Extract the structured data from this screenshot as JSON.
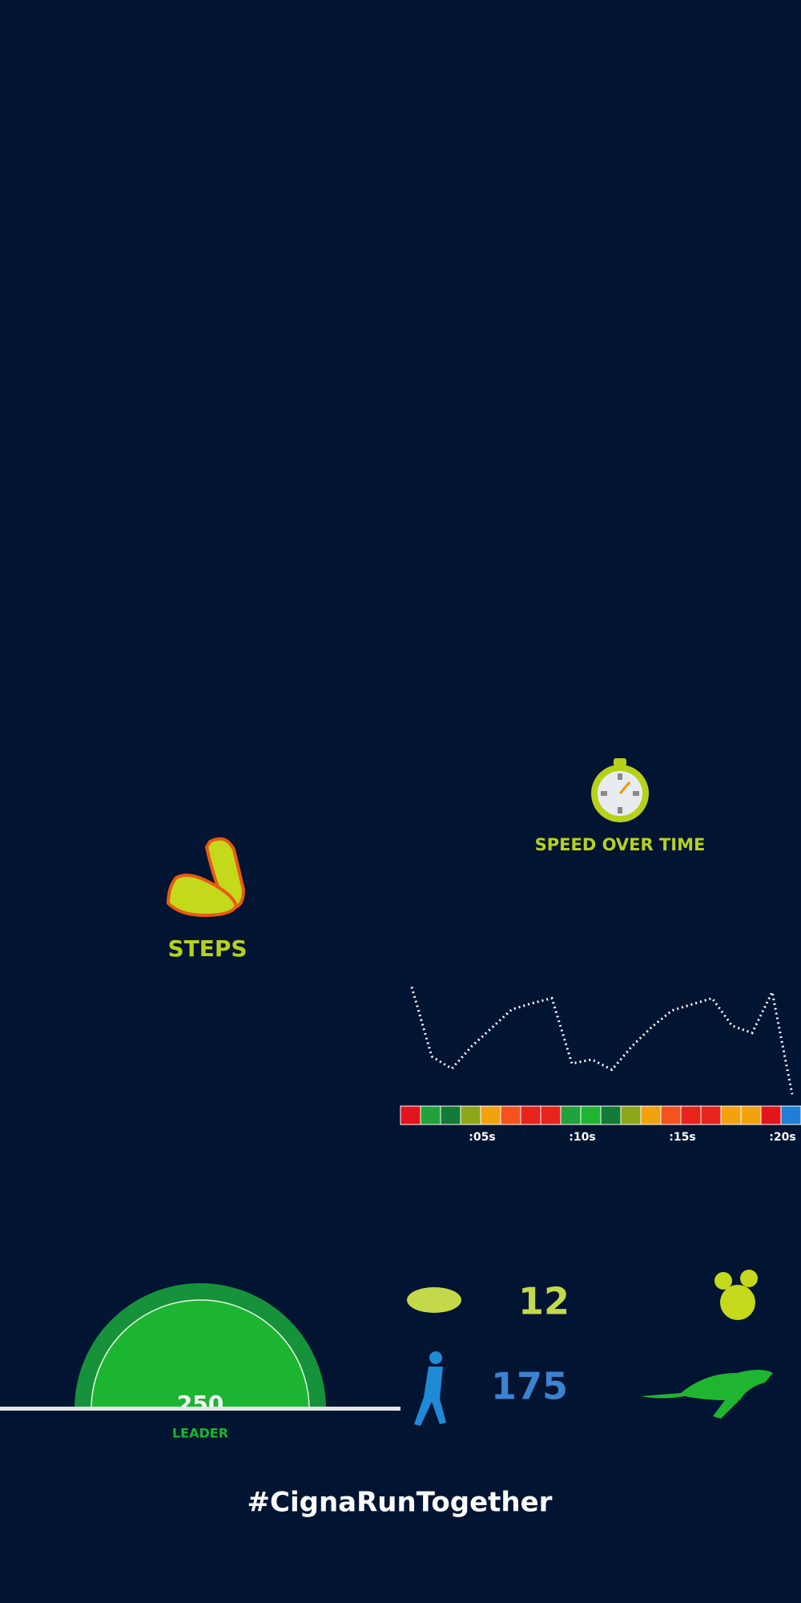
{
  "steps": {
    "title": "STEPS"
  },
  "speed": {
    "title": "SPEED OVER TIME",
    "values": [
      115,
      47,
      35,
      57,
      75,
      93,
      99,
      104,
      40,
      44,
      34,
      57,
      76,
      92,
      98,
      104,
      77,
      70,
      110,
      10
    ],
    "ylim": [
      0,
      120
    ],
    "colors": [
      "#e3141c",
      "#1fa33a",
      "#137a38",
      "#8ea619",
      "#f3a10f",
      "#f5521d",
      "#e8231c",
      "#e8231c",
      "#1fa33a",
      "#1fb531",
      "#137a38",
      "#8ea619",
      "#f3a10f",
      "#f5521d",
      "#e8231c",
      "#e8231c",
      "#f5a10f",
      "#f3a10f",
      "#e3141c",
      "#1f7fd6"
    ],
    "ticks": [
      ":05s",
      ":10s",
      ":15s",
      ":20s"
    ]
  },
  "gauge": {
    "value": 250,
    "label": "LEADER"
  },
  "rows": [
    {
      "value": 12
    },
    {
      "value": 175
    }
  ],
  "hashtag": "#CignaRunTogether"
}
